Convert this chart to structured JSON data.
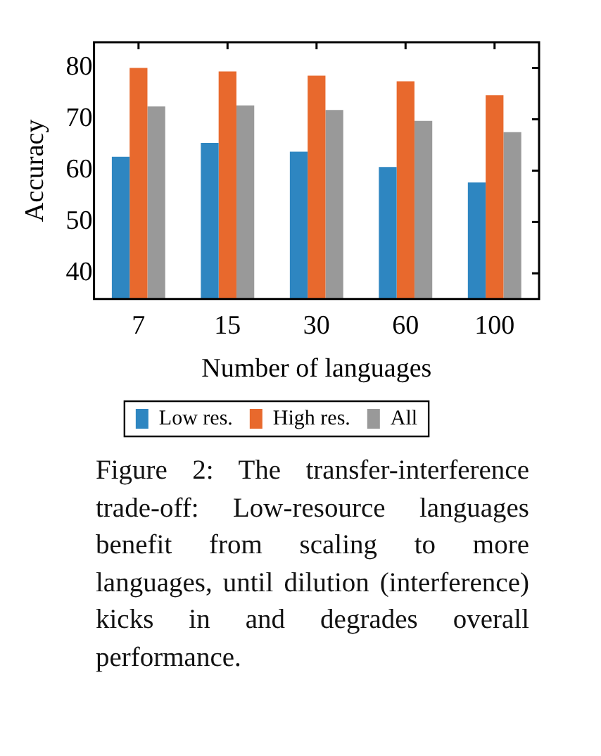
{
  "chart_data": {
    "type": "bar",
    "xlabel": "Number of languages",
    "ylabel": "Accuracy",
    "categories": [
      "7",
      "15",
      "30",
      "60",
      "100"
    ],
    "series": [
      {
        "name": "Low res.",
        "color": "#2e86c1",
        "values": [
          62.7,
          65.4,
          63.7,
          60.7,
          57.7
        ]
      },
      {
        "name": "High res.",
        "color": "#e8692d",
        "values": [
          80.0,
          79.3,
          78.5,
          77.4,
          74.7
        ]
      },
      {
        "name": "All",
        "color": "#999999",
        "values": [
          72.5,
          72.7,
          71.8,
          69.7,
          67.5
        ]
      }
    ],
    "ylim": [
      35,
      85
    ],
    "yticks": [
      40,
      50,
      60,
      70,
      80
    ],
    "grid": false,
    "legend": "bottom",
    "annotations": [
      "Figure 2: The transfer-interference trade-off: Low-resource languages benefit from scaling to more languages, until dilution (interference) kicks in and degrades overall performance."
    ]
  }
}
